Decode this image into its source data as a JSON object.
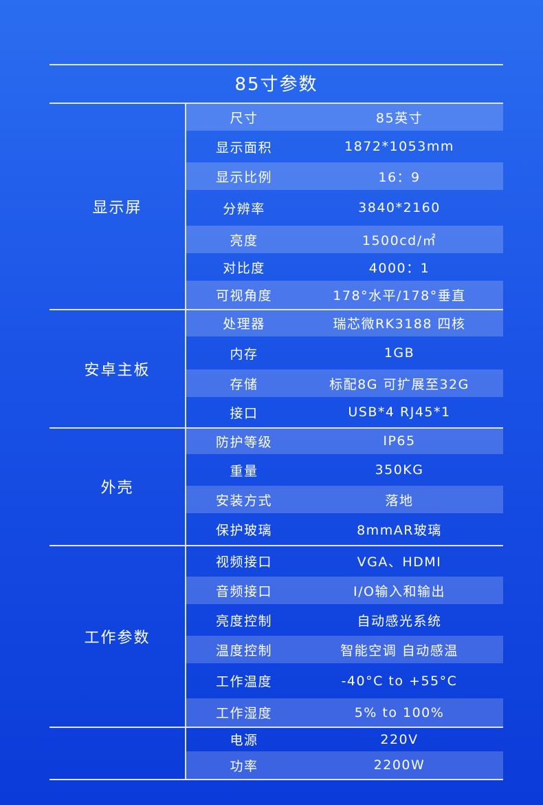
{
  "title": "85寸参数",
  "groups": [
    {
      "name": "显示屏",
      "rows": [
        {
          "label": "尺寸",
          "value": "85英寸"
        },
        {
          "label": "显示面积",
          "value": "1872*1053mm"
        },
        {
          "label": "显示比例",
          "value": "16：9"
        },
        {
          "label": "分辨率",
          "value": "3840*2160"
        },
        {
          "label": "亮度",
          "value": "1500cd/㎡"
        },
        {
          "label": "对比度",
          "value": "4000：1"
        },
        {
          "label": "可视角度",
          "value": "178°水平/178°垂直"
        }
      ]
    },
    {
      "name": "安卓主板",
      "rows": [
        {
          "label": "处理器",
          "value": "瑞芯微RK3188  四核"
        },
        {
          "label": "内存",
          "value": "1GB"
        },
        {
          "label": "存储",
          "value": "标配8G 可扩展至32G"
        },
        {
          "label": "接口",
          "value": "USB*4   RJ45*1"
        }
      ]
    },
    {
      "name": "外壳",
      "rows": [
        {
          "label": "防护等级",
          "value": "IP65"
        },
        {
          "label": "重量",
          "value": "350KG"
        },
        {
          "label": "安装方式",
          "value": "落地"
        },
        {
          "label": "保护玻璃",
          "value": "8mmAR玻璃"
        }
      ]
    },
    {
      "name": "工作参数",
      "rows": [
        {
          "label": "视频接口",
          "value": "VGA、HDMI"
        },
        {
          "label": "音频接口",
          "value": "I/O输入和输出"
        },
        {
          "label": "亮度控制",
          "value": "自动感光系统"
        },
        {
          "label": "温度控制",
          "value": "智能空调 自动感温"
        },
        {
          "label": "工作温度",
          "value": "-40°C to +55°C"
        },
        {
          "label": "工作湿度",
          "value": "5% to 100%"
        }
      ]
    },
    {
      "name": "",
      "rows": [
        {
          "label": "电源",
          "value": "220V"
        },
        {
          "label": "功率",
          "value": "2200W"
        }
      ]
    }
  ]
}
